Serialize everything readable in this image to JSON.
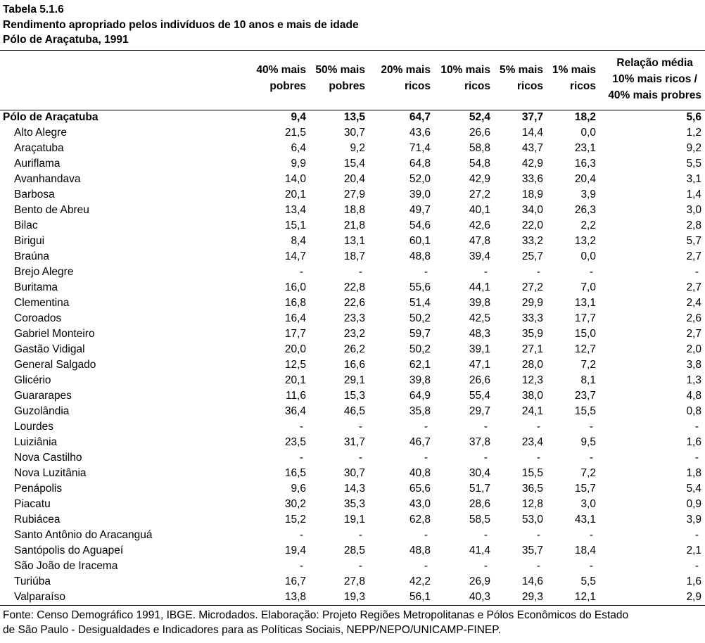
{
  "title": {
    "line1": "Tabela 5.1.6",
    "line2": "Rendimento apropriado pelos indivíduos de 10 anos e mais de idade",
    "line3": "Pólo de Araçatuba, 1991"
  },
  "columns": [
    [
      "40% mais",
      "pobres"
    ],
    [
      "50% mais",
      "pobres"
    ],
    [
      "20% mais",
      "ricos"
    ],
    [
      "10% mais",
      "ricos"
    ],
    [
      "5% mais",
      "ricos"
    ],
    [
      "1% mais",
      "ricos"
    ],
    [
      "Relação média",
      "10% mais ricos /",
      "40% mais probres"
    ]
  ],
  "total": {
    "name": "Pólo de Araçatuba",
    "values": [
      "9,4",
      "13,5",
      "64,7",
      "52,4",
      "37,7",
      "18,2",
      "5,6"
    ]
  },
  "rows": [
    {
      "name": "Alto Alegre",
      "values": [
        "21,5",
        "30,7",
        "43,6",
        "26,6",
        "14,4",
        "0,0",
        "1,2"
      ]
    },
    {
      "name": "Araçatuba",
      "values": [
        "6,4",
        "9,2",
        "71,4",
        "58,8",
        "43,7",
        "23,1",
        "9,2"
      ]
    },
    {
      "name": "Auriflama",
      "values": [
        "9,9",
        "15,4",
        "64,8",
        "54,8",
        "42,9",
        "16,3",
        "5,5"
      ]
    },
    {
      "name": "Avanhandava",
      "values": [
        "14,0",
        "20,4",
        "52,0",
        "42,9",
        "33,6",
        "20,4",
        "3,1"
      ]
    },
    {
      "name": "Barbosa",
      "values": [
        "20,1",
        "27,9",
        "39,0",
        "27,2",
        "18,9",
        "3,9",
        "1,4"
      ]
    },
    {
      "name": "Bento de Abreu",
      "values": [
        "13,4",
        "18,8",
        "49,7",
        "40,1",
        "34,0",
        "26,3",
        "3,0"
      ]
    },
    {
      "name": "Bilac",
      "values": [
        "15,1",
        "21,8",
        "54,6",
        "42,6",
        "22,0",
        "2,2",
        "2,8"
      ]
    },
    {
      "name": "Birigui",
      "values": [
        "8,4",
        "13,1",
        "60,1",
        "47,8",
        "33,2",
        "13,2",
        "5,7"
      ]
    },
    {
      "name": "Braúna",
      "values": [
        "14,7",
        "18,7",
        "48,8",
        "39,4",
        "25,7",
        "0,0",
        "2,7"
      ]
    },
    {
      "name": "Brejo Alegre",
      "values": [
        "-",
        "-",
        "-",
        "-",
        "-",
        "-",
        "-"
      ]
    },
    {
      "name": "Buritama",
      "values": [
        "16,0",
        "22,8",
        "55,6",
        "44,1",
        "27,2",
        "7,0",
        "2,7"
      ]
    },
    {
      "name": "Clementina",
      "values": [
        "16,8",
        "22,6",
        "51,4",
        "39,8",
        "29,9",
        "13,1",
        "2,4"
      ]
    },
    {
      "name": "Coroados",
      "values": [
        "16,4",
        "23,3",
        "50,2",
        "42,5",
        "33,3",
        "17,7",
        "2,6"
      ]
    },
    {
      "name": "Gabriel Monteiro",
      "values": [
        "17,7",
        "23,2",
        "59,7",
        "48,3",
        "35,9",
        "15,0",
        "2,7"
      ]
    },
    {
      "name": "Gastão Vidigal",
      "values": [
        "20,0",
        "26,2",
        "50,2",
        "39,1",
        "27,1",
        "12,7",
        "2,0"
      ]
    },
    {
      "name": "General Salgado",
      "values": [
        "12,5",
        "16,6",
        "62,1",
        "47,1",
        "28,0",
        "7,2",
        "3,8"
      ]
    },
    {
      "name": "Glicério",
      "values": [
        "20,1",
        "29,1",
        "39,8",
        "26,6",
        "12,3",
        "8,1",
        "1,3"
      ]
    },
    {
      "name": "Guararapes",
      "values": [
        "11,6",
        "15,3",
        "64,9",
        "55,4",
        "38,0",
        "23,7",
        "4,8"
      ]
    },
    {
      "name": "Guzolândia",
      "values": [
        "36,4",
        "46,5",
        "35,8",
        "29,7",
        "24,1",
        "15,5",
        "0,8"
      ]
    },
    {
      "name": "Lourdes",
      "values": [
        "-",
        "-",
        "-",
        "-",
        "-",
        "-",
        "-"
      ]
    },
    {
      "name": "Luiziânia",
      "values": [
        "23,5",
        "31,7",
        "46,7",
        "37,8",
        "23,4",
        "9,5",
        "1,6"
      ]
    },
    {
      "name": "Nova Castilho",
      "values": [
        "-",
        "-",
        "-",
        "-",
        "-",
        "-",
        "-"
      ]
    },
    {
      "name": "Nova Luzitânia",
      "values": [
        "16,5",
        "30,7",
        "40,8",
        "30,4",
        "15,5",
        "7,2",
        "1,8"
      ]
    },
    {
      "name": "Penápolis",
      "values": [
        "9,6",
        "14,3",
        "65,6",
        "51,7",
        "36,5",
        "15,7",
        "5,4"
      ]
    },
    {
      "name": "Piacatu",
      "values": [
        "30,2",
        "35,3",
        "43,0",
        "28,6",
        "12,8",
        "3,0",
        "0,9"
      ]
    },
    {
      "name": "Rubiácea",
      "values": [
        "15,2",
        "19,1",
        "62,8",
        "58,5",
        "53,0",
        "43,1",
        "3,9"
      ]
    },
    {
      "name": "Santo Antônio do Aracanguá",
      "values": [
        "-",
        "-",
        "-",
        "-",
        "-",
        "-",
        "-"
      ]
    },
    {
      "name": "Santópolis do Aguapeí",
      "values": [
        "19,4",
        "28,5",
        "48,8",
        "41,4",
        "35,7",
        "18,4",
        "2,1"
      ]
    },
    {
      "name": "São João de Iracema",
      "values": [
        "-",
        "-",
        "-",
        "-",
        "-",
        "-",
        "-"
      ]
    },
    {
      "name": "Turiúba",
      "values": [
        "16,7",
        "27,8",
        "42,2",
        "26,9",
        "14,6",
        "5,5",
        "1,6"
      ]
    },
    {
      "name": "Valparaíso",
      "values": [
        "13,8",
        "19,3",
        "56,1",
        "40,3",
        "29,3",
        "12,1",
        "2,9"
      ]
    }
  ],
  "footnote": {
    "line1": "Fonte: Censo Demográfico 1991, IBGE. Microdados. Elaboração: Projeto Regiões Metropolitanas e Pólos Econômicos do Estado",
    "line2": "de São Paulo - Desigualdades e Indicadores para as Políticas Sociais, NEPP/NEPO/UNICAMP-FINEP."
  }
}
